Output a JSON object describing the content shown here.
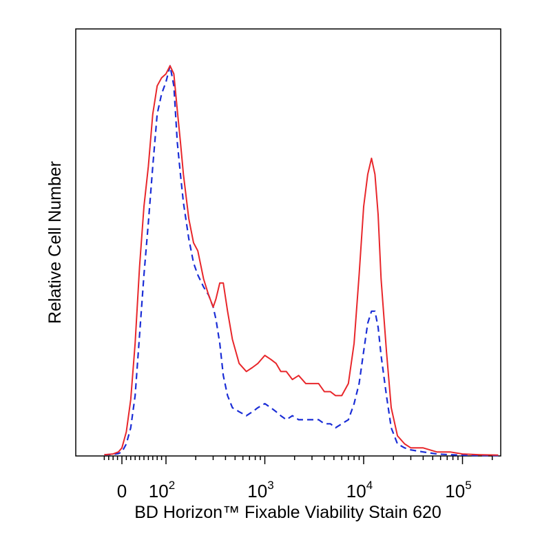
{
  "chart_data": {
    "type": "line",
    "title": "",
    "xlabel": "BD Horizon™ Fixable Viability Stain 620",
    "ylabel": "Relative Cell Number",
    "x_scale": "biexponential",
    "xlim": [
      -40,
      230000
    ],
    "ylim": [
      0,
      100
    ],
    "grid": false,
    "legend": "none",
    "x_ticks": [
      {
        "value": 0,
        "base": "0",
        "exp": ""
      },
      {
        "value": 100,
        "base": "10",
        "exp": "2"
      },
      {
        "value": 1000,
        "base": "10",
        "exp": "3"
      },
      {
        "value": 10000,
        "base": "10",
        "exp": "4"
      },
      {
        "value": 100000,
        "base": "10",
        "exp": "5"
      }
    ],
    "series": [
      {
        "style": "solid",
        "color": "#e8262a",
        "x": [
          -40,
          -20,
          -8,
          0,
          10,
          20,
          30,
          40,
          50,
          60,
          70,
          80,
          90,
          100,
          110,
          120,
          130,
          140,
          150,
          170,
          190,
          210,
          240,
          270,
          300,
          320,
          350,
          380,
          420,
          470,
          550,
          650,
          750,
          850,
          1000,
          1150,
          1300,
          1450,
          1650,
          1900,
          2200,
          2600,
          3000,
          3500,
          4000,
          4600,
          5200,
          6000,
          7000,
          8000,
          9000,
          10000,
          11000,
          12000,
          13000,
          14000,
          15000,
          17000,
          19000,
          22000,
          26000,
          30000,
          40000,
          55000,
          75000,
          100000,
          150000,
          230000
        ],
        "y": [
          0.3,
          0.5,
          1,
          2,
          6,
          14,
          28,
          47,
          62,
          72,
          85,
          92,
          94,
          95,
          97,
          95,
          86,
          78,
          70,
          59,
          53,
          51,
          44,
          40,
          37,
          39,
          43,
          43,
          36,
          29,
          23,
          21,
          22,
          23,
          25,
          24,
          23,
          21,
          21,
          19,
          20,
          18,
          18,
          18,
          16,
          16,
          15,
          15,
          18,
          28,
          45,
          62,
          70,
          74,
          70,
          60,
          44,
          26,
          12,
          5,
          3,
          2,
          2,
          1,
          1,
          0.5,
          0.3,
          0.2
        ]
      },
      {
        "style": "dashed",
        "color": "#1a2dd6",
        "x": [
          -40,
          -20,
          -8,
          0,
          10,
          20,
          30,
          40,
          50,
          60,
          70,
          80,
          90,
          100,
          110,
          120,
          130,
          140,
          150,
          170,
          190,
          210,
          240,
          270,
          300,
          320,
          350,
          380,
          420,
          470,
          550,
          650,
          750,
          850,
          1000,
          1150,
          1300,
          1450,
          1650,
          1900,
          2200,
          2600,
          3000,
          3500,
          4000,
          4600,
          5200,
          6000,
          7000,
          8000,
          9000,
          10000,
          11000,
          12000,
          13000,
          14000,
          15000,
          17000,
          19000,
          22000,
          26000,
          30000,
          40000,
          55000,
          75000,
          100000,
          150000,
          230000
        ],
        "y": [
          0.3,
          0.4,
          0.6,
          1,
          3,
          7,
          15,
          30,
          45,
          58,
          72,
          85,
          90,
          93,
          97,
          92,
          78,
          70,
          63,
          54,
          48,
          45,
          42,
          40,
          37,
          34,
          28,
          20,
          15,
          12,
          11,
          10,
          11,
          12,
          13,
          12,
          11,
          10,
          9,
          10,
          9,
          9,
          9,
          9,
          8,
          8,
          7,
          8,
          9,
          13,
          18,
          26,
          33,
          36,
          36,
          32,
          25,
          15,
          7,
          3,
          2,
          1.5,
          1,
          0.5,
          0.3,
          0.2,
          0.1,
          0.1
        ]
      }
    ]
  }
}
